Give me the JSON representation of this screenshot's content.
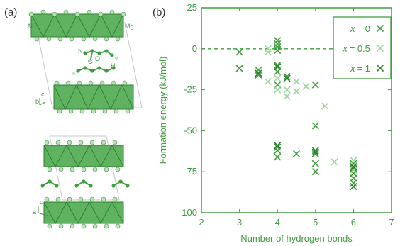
{
  "panel_a": {
    "label": "(a)",
    "atom_labels": {
      "al": "Al",
      "mg": "Mg",
      "n": "N",
      "c": "C",
      "o": "O",
      "h": "H"
    },
    "axis_letters": {
      "a": "a",
      "b": "b",
      "c": "c"
    }
  },
  "colors": {
    "green": "#3f9f3f",
    "light_green": "#9fd69f",
    "dark_green": "#2f7f2f"
  },
  "chart_data": {
    "type": "scatter",
    "panel_label": "(b)",
    "xlabel": "Number of hydrogen bonds",
    "ylabel": "Formation energy (kJ/mol)",
    "xlim": [
      2,
      7
    ],
    "ylim": [
      -100,
      25
    ],
    "xticks": [
      2,
      3,
      4,
      5,
      6,
      7
    ],
    "yticks": [
      25,
      0,
      -25,
      -50,
      -75,
      -100
    ],
    "grid": false,
    "legend_position": "top-right",
    "zero_line": 0,
    "series": [
      {
        "name": "x = 0",
        "legend_var": "x",
        "legend_value": "= 0",
        "color": "#3f9f3f",
        "points": [
          [
            3,
            -2
          ],
          [
            3,
            -12
          ],
          [
            3.5,
            -13
          ],
          [
            3.5,
            -16
          ],
          [
            4,
            5
          ],
          [
            4,
            3
          ],
          [
            4,
            1
          ],
          [
            4,
            -1
          ],
          [
            4,
            -10
          ],
          [
            4,
            -14
          ],
          [
            4,
            -22
          ],
          [
            4,
            -60
          ],
          [
            4,
            -62
          ],
          [
            4,
            -66
          ],
          [
            4.25,
            -17
          ],
          [
            4.5,
            -64
          ],
          [
            5,
            -22
          ],
          [
            5,
            -47
          ],
          [
            5,
            -62
          ],
          [
            5,
            -64
          ],
          [
            5,
            -70
          ],
          [
            5,
            -75
          ],
          [
            6,
            -70
          ],
          [
            6,
            -73
          ],
          [
            6,
            -76
          ],
          [
            6,
            -79
          ],
          [
            6,
            -82
          ]
        ]
      },
      {
        "name": "x = 0.5",
        "legend_var": "x",
        "legend_value": "= 0.5",
        "color": "#9fd69f",
        "points": [
          [
            3.75,
            -2
          ],
          [
            3.75,
            0
          ],
          [
            3.75,
            -20
          ],
          [
            4,
            -18
          ],
          [
            4,
            -25
          ],
          [
            4.25,
            -25
          ],
          [
            4.25,
            -29
          ],
          [
            4.5,
            -20
          ],
          [
            4.5,
            -26
          ],
          [
            4.75,
            -23
          ],
          [
            5.25,
            -35
          ],
          [
            5.5,
            -69
          ],
          [
            6,
            -68
          ],
          [
            6,
            -71
          ],
          [
            6,
            -74
          ]
        ]
      },
      {
        "name": "x = 1",
        "legend_var": "x",
        "legend_value": "= 1",
        "color": "#2f7f2f",
        "points": [
          [
            3.5,
            -15
          ],
          [
            4,
            -11
          ],
          [
            4,
            -59
          ],
          [
            4.25,
            -18
          ],
          [
            5,
            -63
          ],
          [
            6,
            -72
          ],
          [
            6,
            -84
          ]
        ]
      }
    ]
  }
}
